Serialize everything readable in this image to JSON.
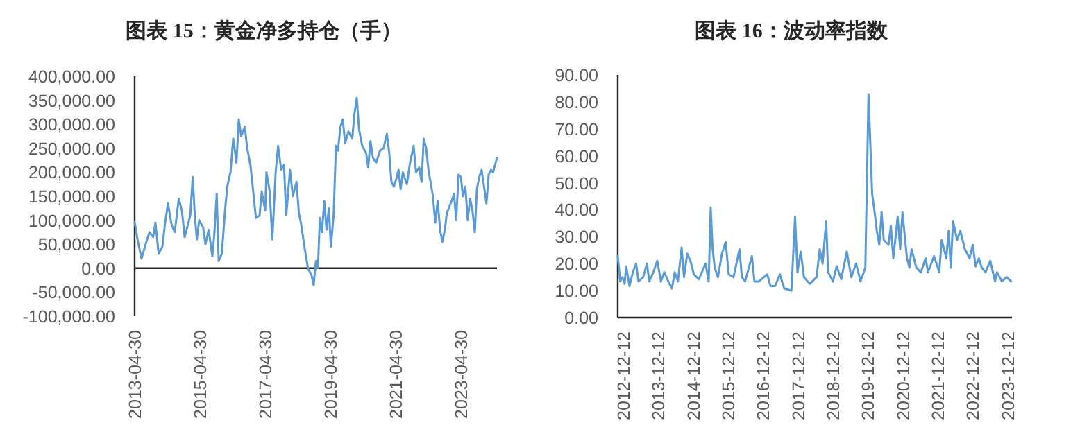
{
  "chart_data": [
    {
      "type": "line",
      "title": "图表 15：黄金净多持仓（手）",
      "x": [
        "2013-04-30",
        "2013-06-01",
        "2013-07-16",
        "2013-09-08",
        "2013-10-13",
        "2013-11-23",
        "2013-12-19",
        "2014-01-24",
        "2014-03-07",
        "2014-04-03",
        "2014-05-08",
        "2014-06-18",
        "2014-07-23",
        "2014-09-06",
        "2014-10-11",
        "2014-11-11",
        "2014-12-16",
        "2015-01-13",
        "2015-02-09",
        "2015-03-05",
        "2015-03-27",
        "2015-04-23",
        "2015-06-06",
        "2015-07-02",
        "2015-08-07",
        "2015-09-17",
        "2015-10-09",
        "2015-11-05",
        "2015-11-27",
        "2016-01-01",
        "2016-02-06",
        "2016-03-02",
        "2016-04-07",
        "2016-05-08",
        "2016-06-13",
        "2016-07-09",
        "2016-08-05",
        "2016-09-15",
        "2016-10-11",
        "2016-11-16",
        "2016-12-12",
        "2017-01-17",
        "2017-02-27",
        "2017-03-23",
        "2017-05-01",
        "2017-05-15",
        "2017-06-20",
        "2017-07-20",
        "2017-08-26",
        "2017-09-22",
        "2017-10-27",
        "2017-11-27",
        "2017-12-23",
        "2018-02-02",
        "2018-03-07",
        "2018-04-16",
        "2018-05-13",
        "2018-06-09",
        "2018-07-18",
        "2018-08-23",
        "2018-10-02",
        "2018-10-25",
        "2018-11-20",
        "2018-12-12",
        "2019-01-03",
        "2019-01-26",
        "2019-02-22",
        "2019-03-18",
        "2019-04-14",
        "2019-05-06",
        "2019-06-06",
        "2019-07-02",
        "2019-07-25",
        "2019-08-21",
        "2019-09-17",
        "2019-10-13",
        "2019-11-18",
        "2020-01-01",
        "2020-01-24",
        "2020-02-20",
        "2020-03-16",
        "2020-04-21",
        "2020-06-04",
        "2020-06-27",
        "2020-07-23",
        "2020-08-19",
        "2020-09-24",
        "2020-11-07",
        "2020-12-16",
        "2021-01-22",
        "2021-02-18",
        "2021-03-14",
        "2021-04-10",
        "2021-05-06",
        "2021-06-02",
        "2021-06-25",
        "2021-07-20",
        "2021-09-03",
        "2021-10-09",
        "2021-11-18",
        "2021-12-14",
        "2022-01-19",
        "2022-02-15",
        "2022-03-11",
        "2022-04-07",
        "2022-05-03",
        "2022-06-22",
        "2022-07-18",
        "2022-08-14",
        "2022-09-10",
        "2022-10-06",
        "2022-11-02",
        "2022-11-25",
        "2023-01-17",
        "2023-02-13",
        "2023-03-09",
        "2023-04-05",
        "2023-05-01",
        "2023-05-24",
        "2023-06-20",
        "2023-07-16",
        "2023-08-12",
        "2023-09-08",
        "2023-10-04",
        "2023-10-27",
        "2023-11-23",
        "2023-12-19",
        "2024-01-15",
        "2024-02-11",
        "2024-03-07",
        "2024-04-03",
        "2024-04-26",
        "2024-06-08"
      ],
      "series": [
        {
          "color": "#5b9bd5",
          "values": [
            96000,
            60000,
            20000,
            55000,
            75000,
            65000,
            95000,
            30000,
            45000,
            90000,
            135000,
            90000,
            75000,
            145000,
            120000,
            65000,
            90000,
            110000,
            190000,
            110000,
            60000,
            100000,
            85000,
            50000,
            80000,
            25000,
            70000,
            155000,
            15000,
            30000,
            120000,
            170000,
            200000,
            270000,
            220000,
            310000,
            275000,
            295000,
            250000,
            215000,
            170000,
            105000,
            110000,
            160000,
            120000,
            200000,
            160000,
            60000,
            200000,
            255000,
            205000,
            215000,
            110000,
            205000,
            150000,
            180000,
            115000,
            90000,
            40000,
            0,
            -15000,
            -35000,
            15000,
            0,
            105000,
            75000,
            140000,
            80000,
            125000,
            45000,
            110000,
            255000,
            245000,
            295000,
            310000,
            260000,
            285000,
            270000,
            320000,
            355000,
            290000,
            255000,
            240000,
            210000,
            265000,
            230000,
            220000,
            245000,
            250000,
            280000,
            240000,
            180000,
            170000,
            185000,
            205000,
            165000,
            200000,
            175000,
            220000,
            255000,
            200000,
            210000,
            180000,
            270000,
            250000,
            205000,
            150000,
            95000,
            140000,
            80000,
            55000,
            80000,
            115000,
            140000,
            155000,
            100000,
            195000,
            190000,
            150000,
            170000,
            100000,
            145000,
            120000,
            75000,
            165000,
            190000,
            205000,
            170000,
            135000,
            195000,
            205000,
            200000,
            230000
          ]
        }
      ],
      "xlim": [
        "2013-04-30",
        "2024-06-08"
      ],
      "xticks": [
        "2013-04-30",
        "2015-04-30",
        "2017-04-30",
        "2019-04-30",
        "2021-04-30",
        "2023-04-30"
      ],
      "ylim": [
        -100000,
        400000
      ],
      "yticks": [
        {
          "value": -100000,
          "label": "-100,000.00"
        },
        {
          "value": -50000,
          "label": "-50,000.00"
        },
        {
          "value": 0,
          "label": "0.00"
        },
        {
          "value": 50000,
          "label": "50,000.00"
        },
        {
          "value": 100000,
          "label": "100,000.00"
        },
        {
          "value": 150000,
          "label": "150,000.00"
        },
        {
          "value": 200000,
          "label": "200,000.00"
        },
        {
          "value": 250000,
          "label": "250,000.00"
        },
        {
          "value": 300000,
          "label": "300,000.00"
        },
        {
          "value": 350000,
          "label": "350,000.00"
        },
        {
          "value": 400000,
          "label": "400,000.00"
        }
      ]
    },
    {
      "type": "line",
      "title": "图表 16：波动率指数",
      "x": [
        "2012-10-14",
        "2012-11-09",
        "2012-12-03",
        "2012-12-25",
        "2013-01-10",
        "2013-02-14",
        "2013-03-21",
        "2013-04-24",
        "2013-05-19",
        "2013-07-07",
        "2013-08-15",
        "2013-09-09",
        "2013-10-21",
        "2013-12-01",
        "2014-01-09",
        "2014-02-12",
        "2014-03-27",
        "2014-05-03",
        "2014-06-02",
        "2014-07-05",
        "2014-08-13",
        "2014-09-07",
        "2014-10-10",
        "2014-11-13",
        "2014-12-20",
        "2015-02-09",
        "2015-04-20",
        "2015-05-23",
        "2015-06-13",
        "2015-07-03",
        "2015-07-25",
        "2015-08-28",
        "2015-10-08",
        "2015-11-16",
        "2015-12-19",
        "2016-02-07",
        "2016-04-09",
        "2016-05-04",
        "2016-06-07",
        "2016-08-17",
        "2016-09-12",
        "2016-10-27",
        "2017-01-24",
        "2017-02-27",
        "2017-04-16",
        "2017-06-05",
        "2017-07-21",
        "2017-10-04",
        "2017-11-11",
        "2017-12-06",
        "2018-01-09",
        "2018-02-12",
        "2018-04-14",
        "2018-06-24",
        "2018-07-27",
        "2018-08-26",
        "2018-10-02",
        "2018-10-23",
        "2018-12-12",
        "2019-01-20",
        "2019-03-09",
        "2019-05-06",
        "2019-06-22",
        "2019-08-11",
        "2019-09-27",
        "2019-11-16",
        "2019-12-19",
        "2020-01-05",
        "2020-01-26",
        "2020-02-21",
        "2020-03-15",
        "2020-04-10",
        "2020-05-04",
        "2020-05-26",
        "2020-07-15",
        "2020-08-09",
        "2020-09-03",
        "2020-10-19",
        "2020-11-14",
        "2020-12-08",
        "2021-01-24",
        "2021-02-19",
        "2021-03-13",
        "2021-05-02",
        "2021-06-18",
        "2021-08-07",
        "2021-09-01",
        "2021-11-03",
        "2021-12-28",
        "2022-01-22",
        "2022-03-11",
        "2022-04-05",
        "2022-04-27",
        "2022-05-21",
        "2022-07-02",
        "2022-08-05",
        "2022-09-21",
        "2022-11-10",
        "2022-12-13",
        "2023-01-12",
        "2023-02-15",
        "2023-03-17",
        "2023-04-25",
        "2023-06-14",
        "2023-08-03",
        "2023-08-24",
        "2023-10-13",
        "2023-12-02",
        "2024-01-18"
      ],
      "series": [
        {
          "color": "#5b9bd5",
          "values": [
            22.8,
            13.4,
            15,
            12.5,
            19,
            11.7,
            16.8,
            20,
            13.4,
            15,
            20,
            13.4,
            16.8,
            21,
            13.4,
            16.8,
            13.4,
            10.8,
            16.8,
            13.4,
            26,
            15,
            23.7,
            21,
            16,
            14.2,
            20,
            13.4,
            40.8,
            25.4,
            18.5,
            15,
            23.7,
            28,
            16,
            15,
            25.4,
            15,
            13.4,
            22.8,
            13.4,
            13.4,
            16,
            11.7,
            11.7,
            16,
            10.8,
            10,
            37.4,
            16.8,
            24.5,
            15,
            12.5,
            15,
            25.4,
            20,
            35.7,
            16.8,
            13.4,
            19,
            14.2,
            24.5,
            15,
            20,
            13.4,
            18.5,
            82.8,
            66.5,
            46,
            39,
            32.2,
            27,
            39,
            28.8,
            27,
            34,
            22,
            37.4,
            25.4,
            39,
            22,
            18.5,
            25.4,
            18.5,
            16.8,
            22,
            16.8,
            22.8,
            16.8,
            28.8,
            22,
            32.2,
            18.5,
            35.7,
            28.8,
            32.2,
            25.4,
            22,
            27,
            19,
            22,
            18.5,
            16.8,
            21,
            13.4,
            16.8,
            13.4,
            15,
            13.4
          ]
        }
      ],
      "xlim": [
        "2012-10-14",
        "2024-01-27"
      ],
      "xticks": [
        "2012-12-12",
        "2013-12-12",
        "2014-12-12",
        "2015-12-12",
        "2016-12-12",
        "2017-12-12",
        "2018-12-12",
        "2019-12-12",
        "2020-12-12",
        "2021-12-12",
        "2022-12-12",
        "2023-12-12"
      ],
      "ylim": [
        0,
        90
      ],
      "yticks": [
        {
          "value": 0,
          "label": "0.00"
        },
        {
          "value": 10,
          "label": "10.00"
        },
        {
          "value": 20,
          "label": "20.00"
        },
        {
          "value": 30,
          "label": "30.00"
        },
        {
          "value": 40,
          "label": "40.00"
        },
        {
          "value": 50,
          "label": "50.00"
        },
        {
          "value": 60,
          "label": "60.00"
        },
        {
          "value": 70,
          "label": "70.00"
        },
        {
          "value": 80,
          "label": "80.00"
        },
        {
          "value": 90,
          "label": "90.00"
        }
      ]
    }
  ]
}
